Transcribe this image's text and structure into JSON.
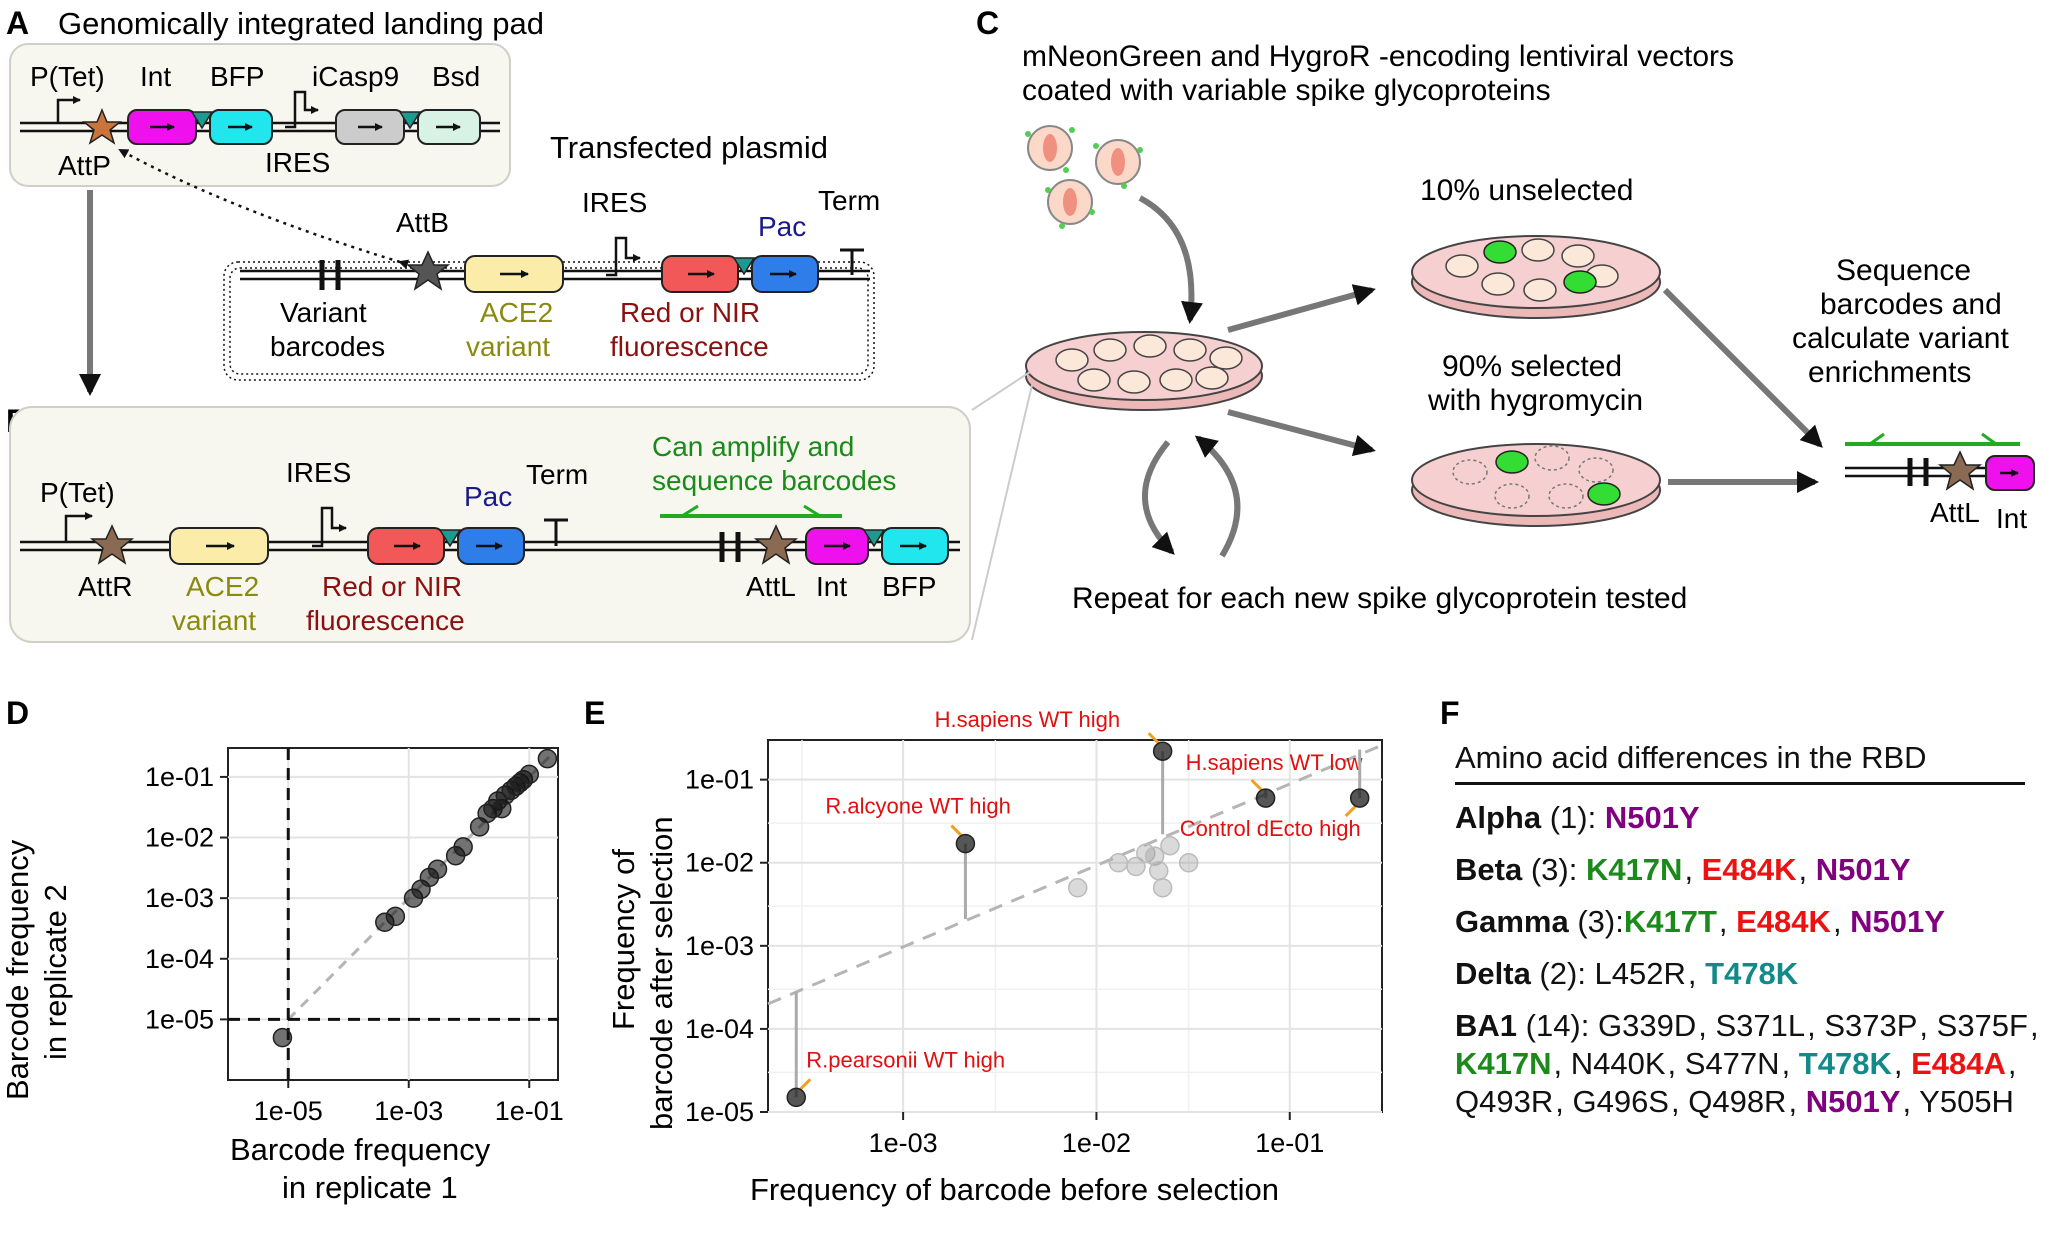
{
  "panel_labels": {
    "A": "A",
    "B": "B",
    "C": "C",
    "D": "D",
    "E": "E",
    "F": "F"
  },
  "colors": {
    "int_magenta": "#ee11ee",
    "bfp_cyan": "#22e6ee",
    "icasp_grey": "#cccccc",
    "bsd_mint": "#d9f2e6",
    "ace2_yellow": "#fbecaa",
    "red_fp": "#f25858",
    "pac_blue": "#2e7de8",
    "att_star_orange": "#c8743a",
    "att_star_dark": "#555555",
    "linker_teal": "#1d9a8f",
    "text_olive": "#8a8a10",
    "text_darkred": "#8b1111",
    "text_navy": "#1a1a8a",
    "text_green": "#1a8a1a",
    "primer_green": "#22aa22",
    "dish_pink": "#f2c2c2",
    "mut_green": "#1a8a1a",
    "mut_red": "#ee1111",
    "mut_purple": "#800080",
    "mut_teal": "#138a8a",
    "annot_red": "#e01010",
    "annot_orange": "#f0a020"
  },
  "panelA": {
    "title": "Genomically integrated landing pad",
    "ptet": "P(Tet)",
    "int": "Int",
    "bfp": "BFP",
    "icasp9": "iCasp9",
    "bsd": "Bsd",
    "attp": "AttP",
    "ires": "IRES",
    "plasmid_title": "Transfected plasmid",
    "attb": "AttB",
    "ires2": "IRES",
    "pac": "Pac",
    "term": "Term",
    "variant_barcodes_1": "Variant",
    "variant_barcodes_2": "barcodes",
    "ace2_1": "ACE2",
    "ace2_2": "variant",
    "fluor_1": "Red or NIR",
    "fluor_2": "fluorescence"
  },
  "panelB": {
    "ptet": "P(Tet)",
    "attr": "AttR",
    "ace2_1": "ACE2",
    "ace2_2": "variant",
    "ires": "IRES",
    "pac": "Pac",
    "term": "Term",
    "fluor_1": "Red or NIR",
    "fluor_2": "fluorescence",
    "amplify_1": "Can amplify and",
    "amplify_2": "sequence barcodes",
    "attl": "AttL",
    "int": "Int",
    "bfp": "BFP"
  },
  "panelC": {
    "title_1": "mNeonGreen and HygroR -encoding lentiviral vectors",
    "title_2": "coated with variable spike glycoproteins",
    "unselected": "10% unselected",
    "selected_1": "90% selected",
    "selected_2": "with hygromycin",
    "sequence_1": "Sequence",
    "sequence_2": "barcodes and",
    "sequence_3": "calculate variant",
    "sequence_4": "enrichments",
    "repeat": "Repeat for each new spike glycoprotein tested",
    "attl": "AttL",
    "int": "Int"
  },
  "panelF": {
    "title": "Amino acid differences in the RBD",
    "rows": [
      {
        "name": "Alpha",
        "count": " (1): ",
        "muts": [
          {
            "t": "N501Y",
            "c": "purple"
          }
        ]
      },
      {
        "name": "Beta",
        "count": " (3): ",
        "muts": [
          {
            "t": "K417N",
            "c": "green"
          },
          {
            "t": "E484K",
            "c": "red"
          },
          {
            "t": "N501Y",
            "c": "purple"
          }
        ]
      },
      {
        "name": "Gamma",
        "count": " (3):",
        "muts": [
          {
            "t": "K417T",
            "c": "green"
          },
          {
            "t": "E484K",
            "c": "red"
          },
          {
            "t": "N501Y",
            "c": "purple"
          }
        ]
      },
      {
        "name": "Delta",
        "count": " (2): ",
        "muts": [
          {
            "t": "L452R",
            "c": "black"
          },
          {
            "t": "T478K",
            "c": "teal"
          }
        ]
      },
      {
        "name": "BA1",
        "count": " (14): ",
        "muts": [
          {
            "t": "G339D",
            "c": "black"
          },
          {
            "t": "S371L",
            "c": "black"
          },
          {
            "t": "S373P",
            "c": "black"
          },
          {
            "t": "S375F",
            "c": "black"
          },
          {
            "t": "K417N",
            "c": "green"
          },
          {
            "t": "N440K",
            "c": "black"
          },
          {
            "t": "S477N",
            "c": "black"
          },
          {
            "t": "T478K",
            "c": "teal"
          },
          {
            "t": "E484A",
            "c": "red"
          },
          {
            "t": "Q493R",
            "c": "black"
          },
          {
            "t": "G496S",
            "c": "black"
          },
          {
            "t": "Q498R",
            "c": "black"
          },
          {
            "t": "N501Y",
            "c": "purple"
          },
          {
            "t": "Y505H",
            "c": "black"
          }
        ]
      }
    ]
  },
  "chart_data": [
    {
      "type": "scatter",
      "panel": "D",
      "xlabel_1": "Barcode frequency",
      "xlabel_2": "in replicate 1",
      "ylabel_1": "Barcode frequency",
      "ylabel_2": "in replicate 2",
      "log_scale": true,
      "xlim": [
        1e-06,
        0.3
      ],
      "ylim": [
        1e-06,
        0.3
      ],
      "x_ticks": [
        {
          "v": 1e-05,
          "label": "1e-05"
        },
        {
          "v": 0.001,
          "label": "1e-03"
        },
        {
          "v": 0.1,
          "label": "1e-01"
        }
      ],
      "y_ticks": [
        {
          "v": 1e-05,
          "label": "1e-05"
        },
        {
          "v": 0.0001,
          "label": "1e-04"
        },
        {
          "v": 0.001,
          "label": "1e-03"
        },
        {
          "v": 0.01,
          "label": "1e-02"
        },
        {
          "v": 0.1,
          "label": "1e-01"
        }
      ],
      "threshold_x": 1e-05,
      "threshold_y": 1e-05,
      "points": [
        {
          "x": 8e-06,
          "y": 5e-06
        },
        {
          "x": 0.0004,
          "y": 0.0004
        },
        {
          "x": 0.0006,
          "y": 0.0005
        },
        {
          "x": 0.0012,
          "y": 0.001
        },
        {
          "x": 0.0016,
          "y": 0.0014
        },
        {
          "x": 0.0022,
          "y": 0.0022
        },
        {
          "x": 0.003,
          "y": 0.003
        },
        {
          "x": 0.006,
          "y": 0.005
        },
        {
          "x": 0.008,
          "y": 0.007
        },
        {
          "x": 0.015,
          "y": 0.015
        },
        {
          "x": 0.02,
          "y": 0.025
        },
        {
          "x": 0.025,
          "y": 0.03
        },
        {
          "x": 0.03,
          "y": 0.04
        },
        {
          "x": 0.035,
          "y": 0.03
        },
        {
          "x": 0.04,
          "y": 0.05
        },
        {
          "x": 0.05,
          "y": 0.06
        },
        {
          "x": 0.06,
          "y": 0.07
        },
        {
          "x": 0.07,
          "y": 0.08
        },
        {
          "x": 0.08,
          "y": 0.09
        },
        {
          "x": 0.1,
          "y": 0.11
        },
        {
          "x": 0.2,
          "y": 0.2
        }
      ]
    },
    {
      "type": "scatter",
      "panel": "E",
      "xlabel": "Frequency of barcode before selection",
      "ylabel_1": "Frequency of",
      "ylabel_2": "barcode after selection",
      "log_scale": true,
      "xlim": [
        0.0002,
        0.3
      ],
      "ylim": [
        1e-05,
        0.3
      ],
      "x_ticks": [
        {
          "v": 0.001,
          "label": "1e-03"
        },
        {
          "v": 0.01,
          "label": "1e-02"
        },
        {
          "v": 0.1,
          "label": "1e-01"
        }
      ],
      "y_ticks": [
        {
          "v": 1e-05,
          "label": "1e-05"
        },
        {
          "v": 0.0001,
          "label": "1e-04"
        },
        {
          "v": 0.001,
          "label": "1e-03"
        },
        {
          "v": 0.01,
          "label": "1e-02"
        },
        {
          "v": 0.1,
          "label": "1e-01"
        }
      ],
      "highlight_points": [
        {
          "x": 0.00028,
          "y": 1.5e-05,
          "label": "R.pearsonii WT high"
        },
        {
          "x": 0.0021,
          "y": 0.017,
          "label": "R.alcyone WT high"
        },
        {
          "x": 0.022,
          "y": 0.22,
          "label": "H.sapiens WT high"
        },
        {
          "x": 0.075,
          "y": 0.06,
          "label": "H.sapiens WT low"
        },
        {
          "x": 0.23,
          "y": 0.06,
          "label": "Control dEcto high"
        }
      ],
      "faded_points": [
        {
          "x": 0.008,
          "y": 0.005
        },
        {
          "x": 0.013,
          "y": 0.01
        },
        {
          "x": 0.016,
          "y": 0.009
        },
        {
          "x": 0.018,
          "y": 0.013
        },
        {
          "x": 0.02,
          "y": 0.012
        },
        {
          "x": 0.021,
          "y": 0.008
        },
        {
          "x": 0.022,
          "y": 0.005
        },
        {
          "x": 0.024,
          "y": 0.016
        },
        {
          "x": 0.03,
          "y": 0.01
        }
      ]
    }
  ]
}
